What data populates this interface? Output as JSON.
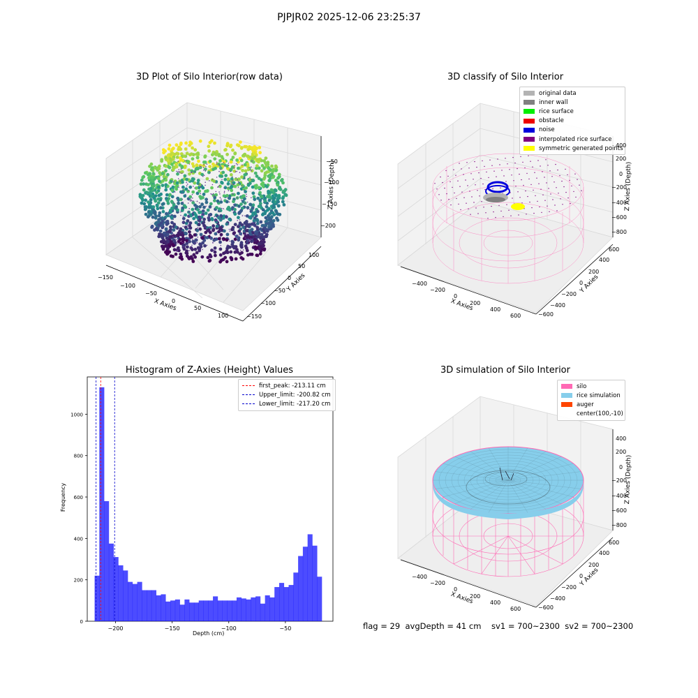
{
  "figure": {
    "suptitle": "PJPJR02 2025-12-06 23:25:37",
    "footer": "flag = 29  avgDepth = 41 cm    sv1 = 700~2300  sv2 = 700~2300"
  },
  "panels": {
    "raw": {
      "title": "3D Plot of Silo Interior(row data)",
      "xlabel": "X Axies",
      "ylabel": "Y Axies",
      "zlabel": "Z Axies (Depth)",
      "xticks": [
        "−150",
        "−100",
        "−50",
        "0",
        "50",
        "100"
      ],
      "yticks": [
        "100",
        "50",
        "0",
        "−50",
        "−100",
        "−150"
      ],
      "zticks": [
        "−50",
        "−100",
        "−150",
        "−200"
      ]
    },
    "classify": {
      "title": "3D classify of Silo Interior",
      "xlabel": "X Axies",
      "ylabel": "Y Axies",
      "zlabel": "Z Axies (Depth)",
      "xticks": [
        "−400",
        "−200",
        "0",
        "200",
        "400",
        "600"
      ],
      "yticks": [
        "600",
        "400",
        "200",
        "0",
        "−200",
        "−400",
        "−600"
      ],
      "zticks": [
        "400",
        "200",
        "0",
        "−200",
        "−400",
        "−600",
        "−800"
      ],
      "legend": [
        {
          "label": "original data",
          "color": "#b3b3b3"
        },
        {
          "label": "inner wall",
          "color": "#808080"
        },
        {
          "label": "rice surface",
          "color": "#00ee00"
        },
        {
          "label": "obstacle",
          "color": "#ee0000"
        },
        {
          "label": "noise",
          "color": "#0000dd"
        },
        {
          "label": "interpolated rice surface",
          "color": "#800080"
        },
        {
          "label": "symmetric generated points",
          "color": "#ffff00"
        }
      ]
    },
    "simulation": {
      "title": "3D simulation of Silo Interior",
      "xlabel": "X Axies",
      "ylabel": "Y Axies",
      "zlabel": "Z Axies (Depth)",
      "xticks": [
        "−400",
        "−200",
        "0",
        "200",
        "400",
        "600"
      ],
      "yticks": [
        "600",
        "400",
        "200",
        "0",
        "−200",
        "−400",
        "−600"
      ],
      "zticks": [
        "400",
        "200",
        "0",
        "−200",
        "−400",
        "−600",
        "−800"
      ],
      "legend": [
        {
          "label": "silo",
          "color": "#ff69b4"
        },
        {
          "label": "rice simulation",
          "color": "#87ceeb"
        },
        {
          "label": "auger",
          "color": "#ff4500"
        },
        {
          "label": "center(100,-10)",
          "color": ""
        }
      ]
    }
  },
  "chart_data": {
    "type": "bar",
    "title": "Histogram of Z-Axies (Height) Values",
    "xlabel": "Depth (cm)",
    "ylabel": "Frequency",
    "bar_color": "#0000ff",
    "xlim": [
      -225,
      -8
    ],
    "ylim": [
      0,
      1180
    ],
    "xticks": [
      -200,
      -150,
      -100,
      -50
    ],
    "xtick_labels": [
      "−200",
      "−150",
      "−100",
      "−50"
    ],
    "yticks": [
      0,
      200,
      400,
      600,
      800,
      1000
    ],
    "yticks_labels": [
      "0",
      "200",
      "400",
      "600",
      "800",
      "1000"
    ],
    "bin_start": -218.5,
    "bin_width": 4.18,
    "values": [
      220,
      1130,
      580,
      375,
      310,
      270,
      245,
      190,
      180,
      190,
      150,
      150,
      150,
      125,
      130,
      95,
      100,
      105,
      80,
      105,
      90,
      90,
      100,
      100,
      100,
      120,
      100,
      100,
      100,
      100,
      115,
      110,
      105,
      115,
      120,
      85,
      125,
      115,
      165,
      185,
      165,
      175,
      235,
      315,
      360,
      420,
      365,
      215
    ],
    "vlines": [
      {
        "label": "first_peak: -213.11 cm",
        "x": -213.11,
        "color": "#ff0000"
      },
      {
        "label": "Upper_limit: -200.82 cm",
        "x": -200.82,
        "color": "#0000cc"
      },
      {
        "label": "Lower_limit: -217.20 cm",
        "x": -217.2,
        "color": "#0000cc"
      }
    ],
    "legend_position": "upper right"
  }
}
